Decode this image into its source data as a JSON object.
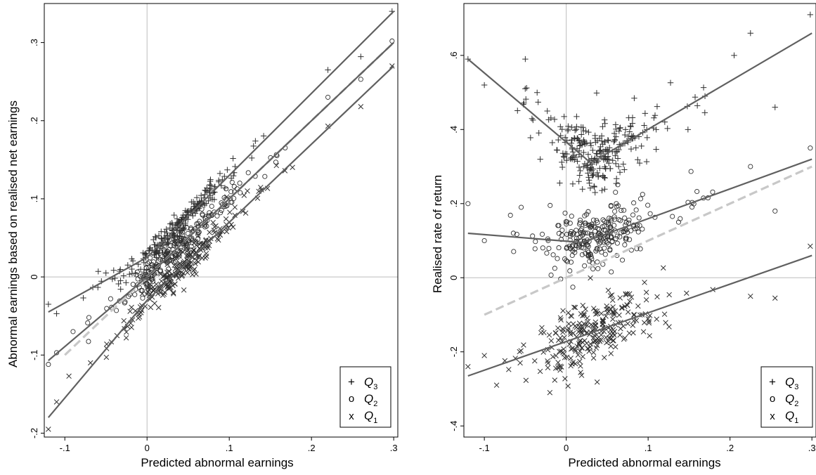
{
  "chart_data": [
    {
      "type": "scatter",
      "title": "",
      "xlabel": "Predicted abnormal earnings",
      "ylabel": "Abnormal earnings based on realised net earnings",
      "xlim": [
        -0.125,
        0.305
      ],
      "ylim": [
        -0.205,
        0.35
      ],
      "xticks": [
        -0.1,
        0,
        0.1,
        0.2,
        0.3
      ],
      "xtick_labels": [
        "-.1",
        "0",
        ".1",
        ".2",
        ".3"
      ],
      "yticks": [
        -0.2,
        -0.1,
        0,
        0.1,
        0.2,
        0.3
      ],
      "ytick_labels": [
        "-.2",
        "-.1",
        "0",
        ".1",
        ".2",
        ".3"
      ],
      "reference_lines": {
        "x": 0,
        "y": 0
      },
      "legend_position": "bottom-right",
      "legend": [
        {
          "symbol": "+",
          "label": "Q",
          "sub": "3"
        },
        {
          "symbol": "o",
          "label": "Q",
          "sub": "2"
        },
        {
          "symbol": "x",
          "label": "Q",
          "sub": "1"
        }
      ],
      "diagonal": {
        "style": "dashed",
        "color": "#c8c8c8",
        "x": [
          -0.1,
          0.3
        ],
        "y": [
          -0.1,
          0.3
        ]
      },
      "series": [
        {
          "marker": "+",
          "fit_x": [
            -0.12,
            0,
            0.3
          ],
          "fit_y": [
            -0.045,
            0.025,
            0.34
          ],
          "n": 230,
          "noise": 0.008,
          "spread": [
            [
              -0.12,
              -0.035
            ],
            [
              -0.11,
              -0.047
            ],
            [
              -0.05,
              0.005
            ],
            [
              0.22,
              0.265
            ],
            [
              0.26,
              0.282
            ],
            [
              0.298,
              0.34
            ]
          ]
        },
        {
          "marker": "o",
          "fit_x": [
            -0.12,
            0,
            0.3
          ],
          "fit_y": [
            -0.107,
            0,
            0.3
          ],
          "n": 230,
          "noise": 0.008,
          "spread": [
            [
              -0.12,
              -0.112
            ],
            [
              -0.11,
              -0.097
            ],
            [
              -0.09,
              -0.07
            ],
            [
              0.22,
              0.23
            ],
            [
              0.26,
              0.253
            ],
            [
              0.298,
              0.302
            ]
          ]
        },
        {
          "marker": "x",
          "fit_x": [
            -0.12,
            0,
            0.3
          ],
          "fit_y": [
            -0.18,
            -0.03,
            0.27
          ],
          "n": 230,
          "noise": 0.01,
          "spread": [
            [
              -0.12,
              -0.195
            ],
            [
              -0.11,
              -0.16
            ],
            [
              -0.095,
              -0.127
            ],
            [
              0.22,
              0.193
            ],
            [
              0.26,
              0.218
            ],
            [
              0.298,
              0.27
            ]
          ]
        }
      ]
    },
    {
      "type": "scatter",
      "title": "",
      "xlabel": "Predicted abnormal earnings",
      "ylabel": "Realised rate of return",
      "xlim": [
        -0.125,
        0.305
      ],
      "ylim": [
        -0.43,
        0.74
      ],
      "xticks": [
        -0.1,
        0,
        0.1,
        0.2,
        0.3
      ],
      "xtick_labels": [
        "-.1",
        "0",
        ".1",
        ".2",
        ".3"
      ],
      "yticks": [
        -0.4,
        -0.2,
        0,
        0.2,
        0.4,
        0.6
      ],
      "ytick_labels": [
        "-.4",
        "-.2",
        "0",
        ".2",
        ".4",
        ".6"
      ],
      "reference_lines": {
        "x": 0,
        "y": 0
      },
      "legend_position": "bottom-right",
      "legend": [
        {
          "symbol": "+",
          "label": "Q",
          "sub": "3"
        },
        {
          "symbol": "o",
          "label": "Q",
          "sub": "2"
        },
        {
          "symbol": "x",
          "label": "Q",
          "sub": "1"
        }
      ],
      "diagonal": {
        "style": "dashed",
        "color": "#c8c8c8",
        "x": [
          -0.1,
          0.3
        ],
        "y": [
          -0.1,
          0.3
        ]
      },
      "series": [
        {
          "marker": "+",
          "fit_x": [
            -0.12,
            0.03,
            0.3
          ],
          "fit_y": [
            0.59,
            0.31,
            0.66
          ],
          "n": 260,
          "noise": 0.045,
          "spread": [
            [
              -0.12,
              0.59
            ],
            [
              -0.1,
              0.52
            ],
            [
              -0.05,
              0.59
            ],
            [
              0.205,
              0.6
            ],
            [
              0.225,
              0.66
            ],
            [
              0.255,
              0.46
            ],
            [
              0.298,
              0.71
            ]
          ]
        },
        {
          "marker": "o",
          "fit_x": [
            -0.12,
            0.02,
            0.3
          ],
          "fit_y": [
            0.12,
            0.095,
            0.32
          ],
          "n": 260,
          "noise": 0.04,
          "spread": [
            [
              -0.12,
              0.2
            ],
            [
              -0.1,
              0.1
            ],
            [
              -0.055,
              0.19
            ],
            [
              0.225,
              0.3
            ],
            [
              0.255,
              0.18
            ],
            [
              0.298,
              0.35
            ]
          ]
        },
        {
          "marker": "x",
          "fit_x": [
            -0.12,
            0.3
          ],
          "fit_y": [
            -0.265,
            0.06
          ],
          "n": 260,
          "noise": 0.045,
          "spread": [
            [
              -0.12,
              -0.24
            ],
            [
              -0.1,
              -0.21
            ],
            [
              -0.085,
              -0.29
            ],
            [
              -0.02,
              -0.31
            ],
            [
              0.225,
              -0.05
            ],
            [
              0.255,
              -0.055
            ],
            [
              0.298,
              0.085
            ]
          ]
        }
      ]
    }
  ]
}
